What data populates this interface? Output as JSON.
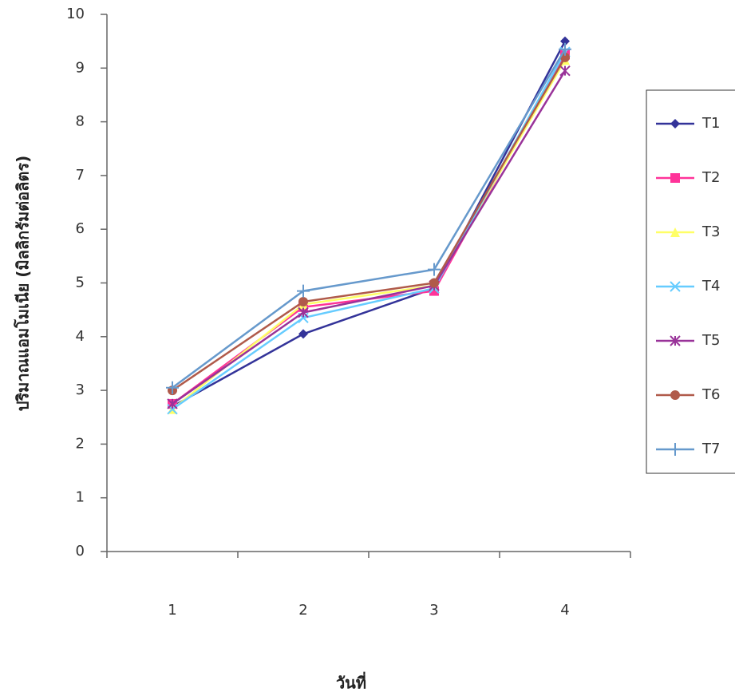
{
  "chart_data": {
    "type": "line",
    "y_label": "ปริมาณแอมโมเนีย (มิลลิกรัมต่อลิตร)",
    "x_label": "วันที่",
    "categories": [
      "1",
      "2",
      "3",
      "4"
    ],
    "ylim": [
      0,
      10
    ],
    "yticks": [
      0,
      1,
      2,
      3,
      4,
      5,
      6,
      7,
      8,
      9,
      10
    ],
    "grid": false,
    "legend": "right",
    "series": [
      {
        "name": "T1",
        "color": "#333399",
        "marker": "diamond",
        "values": [
          2.7,
          4.05,
          4.9,
          9.5
        ]
      },
      {
        "name": "T2",
        "color": "#ff3399",
        "marker": "square",
        "values": [
          2.75,
          4.55,
          4.85,
          9.25
        ]
      },
      {
        "name": "T3",
        "color": "#ffff66",
        "marker": "triangle",
        "values": [
          2.65,
          4.6,
          4.95,
          9.15
        ]
      },
      {
        "name": "T4",
        "color": "#66ccff",
        "marker": "x",
        "values": [
          2.65,
          4.35,
          4.9,
          9.3
        ]
      },
      {
        "name": "T5",
        "color": "#993399",
        "marker": "star",
        "values": [
          2.75,
          4.45,
          4.95,
          8.95
        ]
      },
      {
        "name": "T6",
        "color": "#b05a4a",
        "marker": "circle",
        "values": [
          3.0,
          4.65,
          5.0,
          9.2
        ]
      },
      {
        "name": "T7",
        "color": "#6699cc",
        "marker": "plus",
        "values": [
          3.05,
          4.85,
          5.25,
          9.35
        ]
      }
    ]
  }
}
